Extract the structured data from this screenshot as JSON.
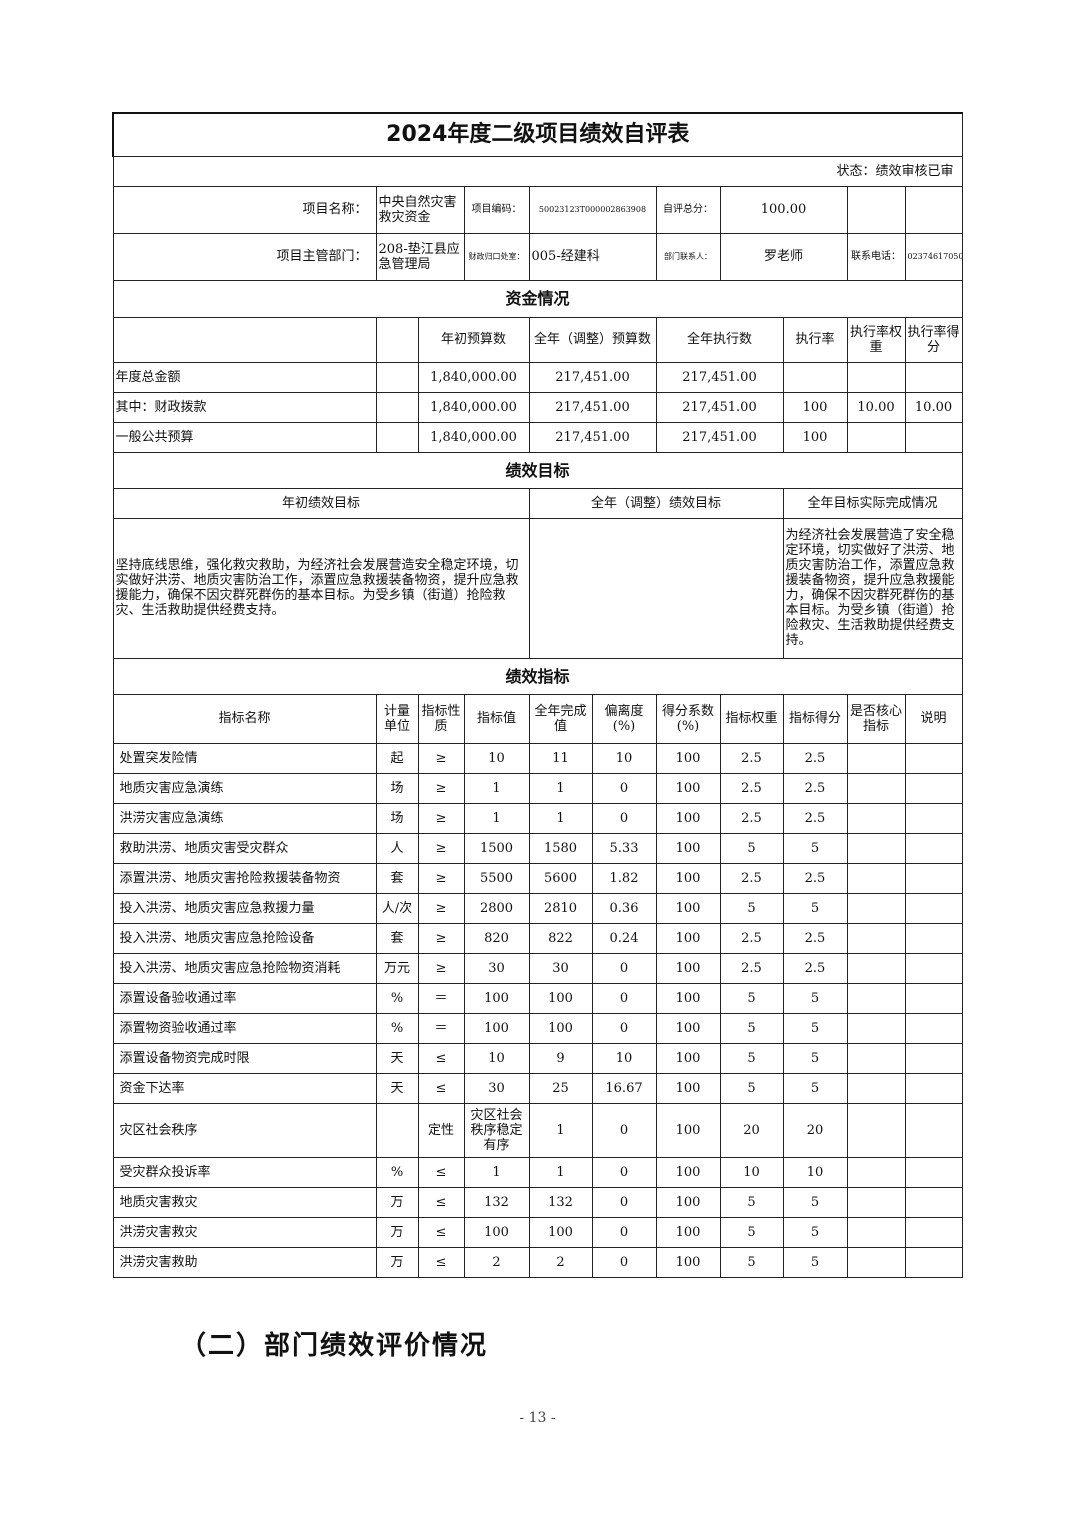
{
  "title": "2024年度二级项目绩效自评表",
  "status": "状态：绩效审核已审",
  "info": {
    "project_name_label": "项目名称：",
    "project_name": "中央自然灾害救灾资金",
    "project_code_label": "项目编码：",
    "project_code": "50023123T000002863908",
    "score_label": "自评总分：",
    "score": "100.00",
    "dept_label": "项目主管部门：",
    "dept": "208-垫江县应急管理局",
    "office_label": "财政归口处室：",
    "office": "005-经建科",
    "contact_label": "部门联系人：",
    "contact": "罗老师",
    "phone_label": "联系电话：",
    "phone": "02374617050"
  },
  "funds": {
    "section": "资金情况",
    "headers": [
      "年初预算数",
      "全年（调整）预算数",
      "全年执行数",
      "执行率",
      "执行率权重",
      "执行率得分"
    ],
    "rows": [
      {
        "label": "年度总金额",
        "initial": "1,840,000.00",
        "adjusted": "217,451.00",
        "executed": "217,451.00",
        "rate": "",
        "weight": "",
        "score": ""
      },
      {
        "label": "其中：财政拨款",
        "initial": "1,840,000.00",
        "adjusted": "217,451.00",
        "executed": "217,451.00",
        "rate": "100",
        "weight": "10.00",
        "score": "10.00"
      },
      {
        "label": "一般公共预算",
        "initial": "1,840,000.00",
        "adjusted": "217,451.00",
        "executed": "217,451.00",
        "rate": "100",
        "weight": "",
        "score": ""
      }
    ]
  },
  "goals": {
    "section": "绩效目标",
    "headers": [
      "年初绩效目标",
      "全年（调整）绩效目标",
      "全年目标实际完成情况"
    ],
    "initial": "坚持底线思维，强化救灾救助，为经济社会发展营造安全稳定环境，切实做好洪涝、地质灾害防治工作，添置应急救援装备物资，提升应急救援能力，确保不因灾群死群伤的基本目标。为受乡镇（街道）抢险救灾、生活救助提供经费支持。",
    "adjusted": "",
    "actual": "为经济社会发展营造了安全稳定环境，切实做好了洪涝、地质灾害防治工作，添置应急救援装备物资，提升应急救援能力，确保不因灾群死群伤的基本目标。为受乡镇（街道）抢险救灾、生活救助提供经费支持。"
  },
  "indicators": {
    "section": "绩效指标",
    "headers": [
      "指标名称",
      "计量单位",
      "指标性质",
      "指标值",
      "全年完成值",
      "偏离度(%)",
      "得分系数(%)",
      "指标权重",
      "指标得分",
      "是否核心指标",
      "说明"
    ],
    "rows": [
      [
        "处置突发险情",
        "起",
        "≥",
        "10",
        "11",
        "10",
        "100",
        "2.5",
        "2.5",
        "",
        ""
      ],
      [
        "地质灾害应急演练",
        "场",
        "≥",
        "1",
        "1",
        "0",
        "100",
        "2.5",
        "2.5",
        "",
        ""
      ],
      [
        "洪涝灾害应急演练",
        "场",
        "≥",
        "1",
        "1",
        "0",
        "100",
        "2.5",
        "2.5",
        "",
        ""
      ],
      [
        "救助洪涝、地质灾害受灾群众",
        "人",
        "≥",
        "1500",
        "1580",
        "5.33",
        "100",
        "5",
        "5",
        "",
        ""
      ],
      [
        "添置洪涝、地质灾害抢险救援装备物资",
        "套",
        "≥",
        "5500",
        "5600",
        "1.82",
        "100",
        "2.5",
        "2.5",
        "",
        ""
      ],
      [
        "投入洪涝、地质灾害应急救援力量",
        "人/次",
        "≥",
        "2800",
        "2810",
        "0.36",
        "100",
        "5",
        "5",
        "",
        ""
      ],
      [
        "投入洪涝、地质灾害应急抢险设备",
        "套",
        "≥",
        "820",
        "822",
        "0.24",
        "100",
        "2.5",
        "2.5",
        "",
        ""
      ],
      [
        "投入洪涝、地质灾害应急抢险物资消耗",
        "万元",
        "≥",
        "30",
        "30",
        "0",
        "100",
        "2.5",
        "2.5",
        "",
        ""
      ],
      [
        "添置设备验收通过率",
        "%",
        "＝",
        "100",
        "100",
        "0",
        "100",
        "5",
        "5",
        "",
        ""
      ],
      [
        "添置物资验收通过率",
        "%",
        "＝",
        "100",
        "100",
        "0",
        "100",
        "5",
        "5",
        "",
        ""
      ],
      [
        "添置设备物资完成时限",
        "天",
        "≤",
        "10",
        "9",
        "10",
        "100",
        "5",
        "5",
        "",
        ""
      ],
      [
        "资金下达率",
        "天",
        "≤",
        "30",
        "25",
        "16.67",
        "100",
        "5",
        "5",
        "",
        ""
      ],
      [
        "灾区社会秩序",
        "",
        "定性",
        "灾区社会秩序稳定有序",
        "1",
        "0",
        "100",
        "20",
        "20",
        "",
        ""
      ],
      [
        "受灾群众投诉率",
        "%",
        "≤",
        "1",
        "1",
        "0",
        "100",
        "10",
        "10",
        "",
        ""
      ],
      [
        "地质灾害救灾",
        "万",
        "≤",
        "132",
        "132",
        "0",
        "100",
        "5",
        "5",
        "",
        ""
      ],
      [
        "洪涝灾害救灾",
        "万",
        "≤",
        "100",
        "100",
        "0",
        "100",
        "5",
        "5",
        "",
        ""
      ],
      [
        "洪涝灾害救助",
        "万",
        "≤",
        "2",
        "2",
        "0",
        "100",
        "5",
        "5",
        "",
        ""
      ]
    ]
  },
  "section_heading": "（二）部门绩效评价情况",
  "page_number": "- 13 -"
}
